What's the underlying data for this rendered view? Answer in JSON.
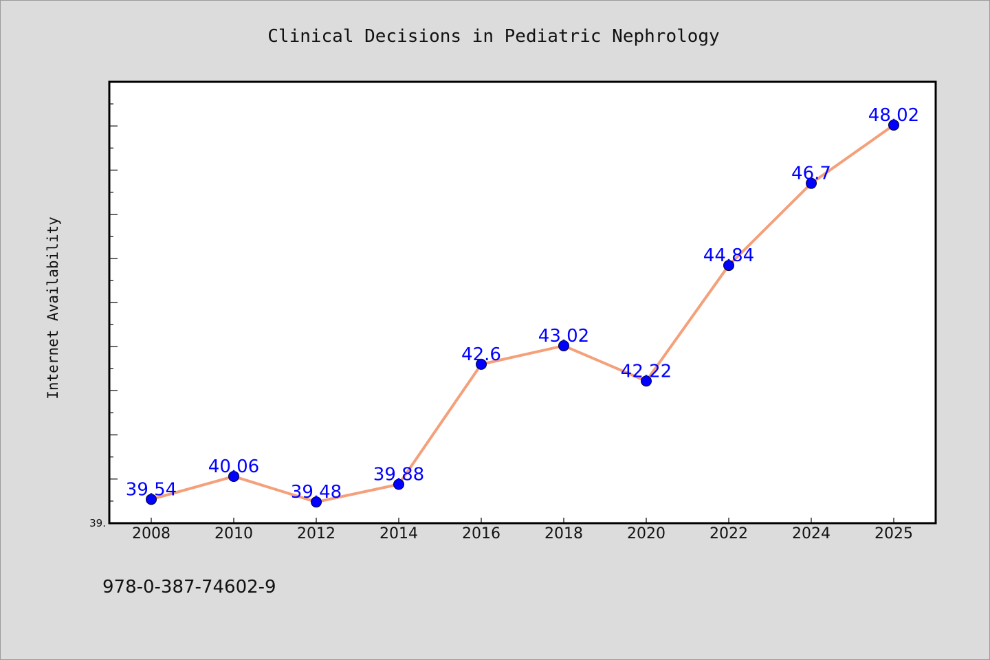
{
  "chart_data": {
    "type": "line",
    "title": "Clinical Decisions in Pediatric Nephrology",
    "xlabel": "",
    "ylabel": "Internet Availability",
    "categories": [
      "2008",
      "2010",
      "2012",
      "2014",
      "2016",
      "2018",
      "2020",
      "2022",
      "2024",
      "2025"
    ],
    "series": [
      {
        "values": [
          39.54,
          40.06,
          39.48,
          39.88,
          42.6,
          43.02,
          42.22,
          44.84,
          46.7,
          48.02
        ],
        "data_labels": [
          "39.54",
          "40.06",
          "39.48",
          "39.88",
          "42.6",
          "43.02",
          "42.22",
          "44.84",
          "46.7",
          "48.02"
        ]
      }
    ],
    "ylim": [
      39.0,
      49.0
    ],
    "y_tick_labels": [
      "39."
    ],
    "grid": false,
    "legend": "none",
    "colors": {
      "line": "#f4a07a",
      "marker": "#0000ff",
      "data_label": "#0000ff",
      "background": "#dcdcdc",
      "plot_background": "#ffffff"
    }
  },
  "footer": {
    "isbn": "978-0-387-74602-9"
  }
}
